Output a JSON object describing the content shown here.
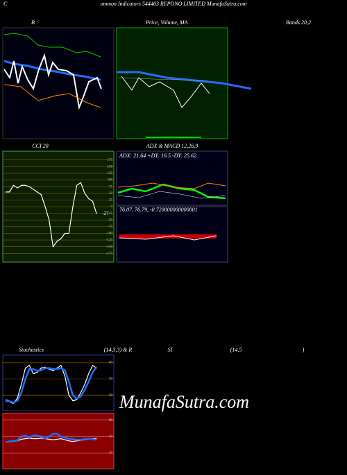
{
  "header": {
    "c": "C",
    "title": "ommon  Indicators 544463 REPONO LIMITED MunafaSutra.com"
  },
  "panel_labels": {
    "b": "B",
    "price": "Price, Volume, MA",
    "bands": "Bands 20,2"
  },
  "watermark": "MunafaSutra.com",
  "chart_data": [
    {
      "type": "line",
      "title": "CCI 20",
      "ylim": [
        -208,
        208
      ],
      "yticks": [
        175,
        150,
        125,
        100,
        75,
        50,
        25,
        0,
        -25,
        -50,
        -75,
        -100,
        -125,
        -150,
        -175
      ],
      "series": [
        {
          "name": "CCI",
          "color": "#ffffff",
          "values": [
            55,
            55,
            80,
            70,
            80,
            80,
            75,
            65,
            55,
            45,
            0,
            -50,
            -150,
            -130,
            -120,
            -100,
            -100,
            0,
            80,
            90,
            50,
            30,
            20,
            -27
          ]
        }
      ]
    },
    {
      "type": "line",
      "title": "ADX  & MACD 12,26,9",
      "annotations": [
        "ADX: 21.64  +DY: 16.5 -DY: 25.62",
        "76.07,  76.79,  -0.720000000000001"
      ]
    },
    {
      "type": "line",
      "title_parts": [
        "Stochastics",
        "(14,3,3) & R",
        "SI",
        "(14,5",
        ")"
      ],
      "ylim": [
        -8,
        94
      ],
      "yticks": [
        80,
        50,
        20
      ],
      "series": [
        {
          "name": "%K",
          "color": "#ffffff",
          "values": [
            10,
            8,
            5,
            15,
            40,
            70,
            75,
            60,
            62,
            70,
            72,
            68,
            65,
            70,
            75,
            55,
            20,
            10,
            12,
            25,
            40,
            60,
            75,
            70
          ]
        },
        {
          "name": "%D",
          "color": "#1e6fff",
          "values": [
            12,
            9,
            7,
            10,
            25,
            50,
            68,
            68,
            65,
            66,
            70,
            70,
            68,
            68,
            70,
            66,
            45,
            20,
            14,
            18,
            30,
            45,
            62,
            72
          ]
        }
      ]
    },
    {
      "type": "line",
      "ylim": [
        -9,
        92.5
      ],
      "yticks": [
        80,
        50,
        20
      ],
      "series": [
        {
          "name": "RSI",
          "color": "#ffffff",
          "values": [
            40,
            40,
            41,
            42,
            45,
            46,
            47,
            46,
            46,
            47,
            46,
            45,
            44,
            45,
            46,
            44,
            42,
            41,
            42,
            43,
            44,
            45,
            46,
            46
          ]
        },
        {
          "name": "MRSI",
          "color": "#1e6fff",
          "values": [
            40,
            41,
            42,
            43,
            50,
            52,
            48,
            52,
            52,
            50,
            46,
            50,
            55,
            55,
            50,
            48,
            46,
            45,
            44,
            44,
            45,
            46,
            45,
            44
          ]
        }
      ]
    }
  ]
}
